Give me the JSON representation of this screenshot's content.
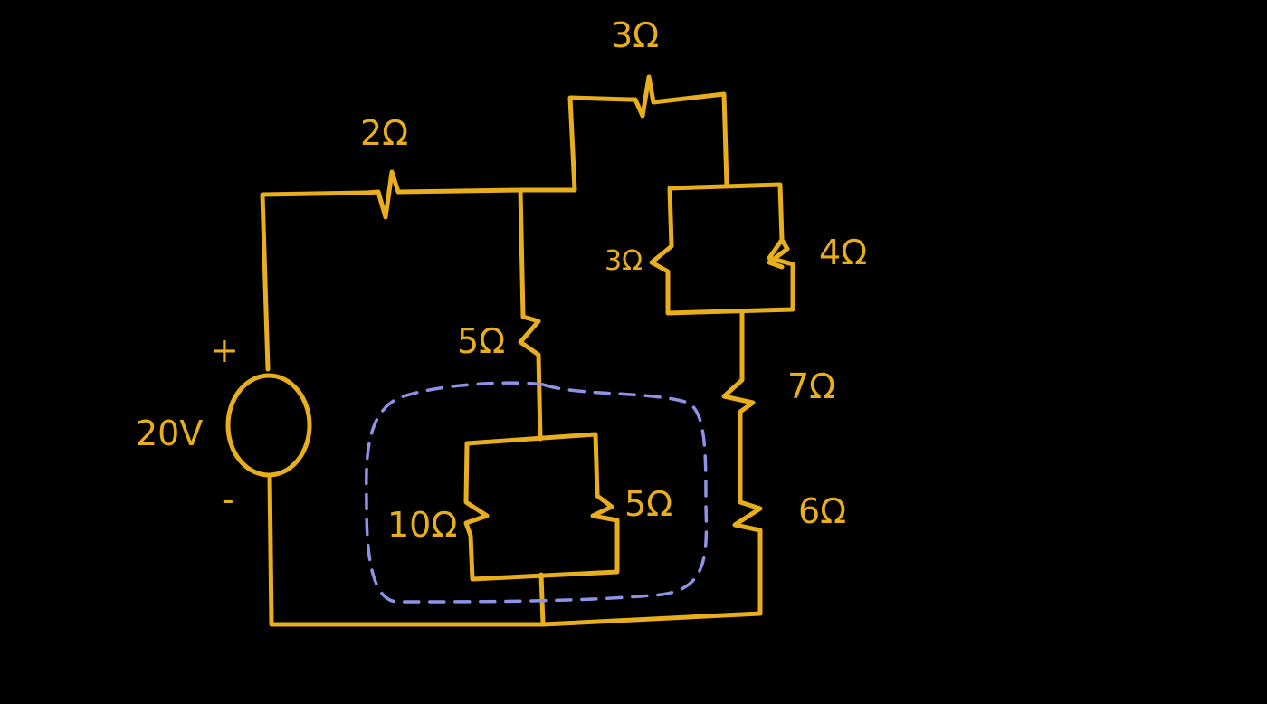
{
  "colors": {
    "background": "#000000",
    "wire": "#E8AE1C",
    "highlight": "#8F93E8"
  },
  "source": {
    "voltage": "20V",
    "plus": "+",
    "minus": "-"
  },
  "resistors": {
    "r_top_left": "2Ω",
    "r_top": "3Ω",
    "r_parallel_left": "3Ω",
    "r_parallel_right": "4Ω",
    "r_middle": "5Ω",
    "r_series_upper": "7Ω",
    "r_series_lower": "6Ω",
    "r_inner_left": "10Ω",
    "r_inner_right": "5Ω"
  }
}
